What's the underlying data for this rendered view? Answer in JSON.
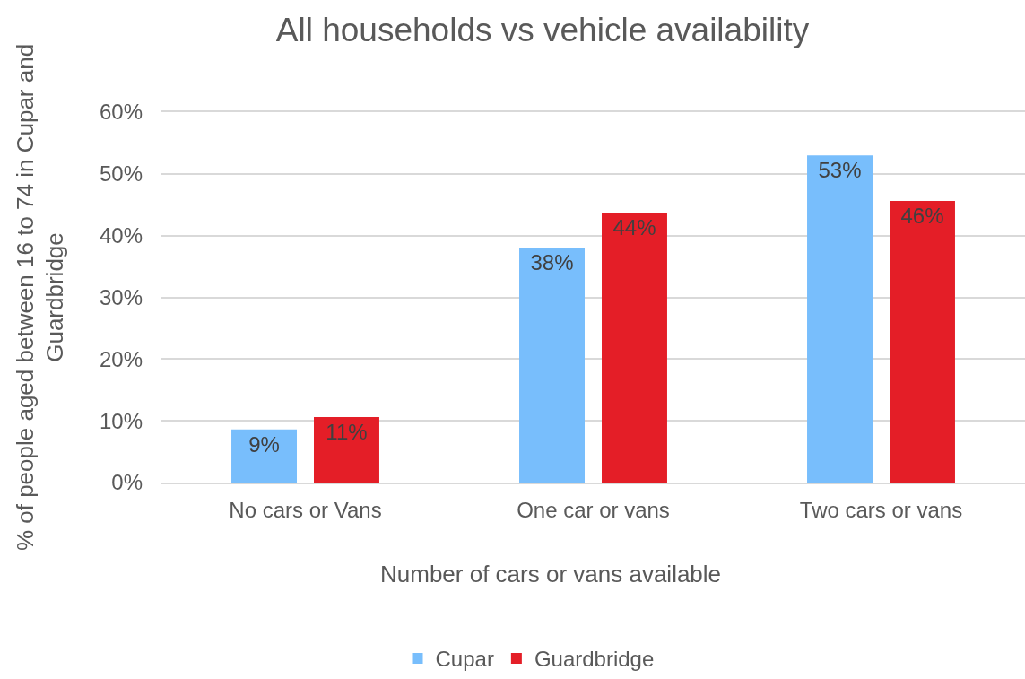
{
  "chart_data": {
    "type": "bar",
    "title": "All households vs vehicle availability",
    "xlabel": "Number of cars or vans available",
    "ylabel": "% of people aged between 16 to 74 in Cupar and Guardbridge",
    "categories": [
      "No cars or Vans",
      "One car or vans",
      "Two cars or vans"
    ],
    "series": [
      {
        "name": "Cupar",
        "color": "#78befc",
        "values": [
          8.6,
          38.0,
          53.0
        ],
        "value_labels": [
          "9%",
          "38%",
          "53%"
        ]
      },
      {
        "name": "Guardbridge",
        "color": "#e41e27",
        "values": [
          10.6,
          43.7,
          45.6
        ],
        "value_labels": [
          "11%",
          "44%",
          "46%"
        ]
      }
    ],
    "ylim": [
      0,
      60
    ],
    "yticks": [
      {
        "value": 0,
        "label": "0%"
      },
      {
        "value": 10,
        "label": "10%"
      },
      {
        "value": 20,
        "label": "20%"
      },
      {
        "value": 30,
        "label": "30%"
      },
      {
        "value": 40,
        "label": "40%"
      },
      {
        "value": 50,
        "label": "50%"
      },
      {
        "value": 60,
        "label": "60%"
      }
    ],
    "grid": "y",
    "legend": "bottom"
  }
}
